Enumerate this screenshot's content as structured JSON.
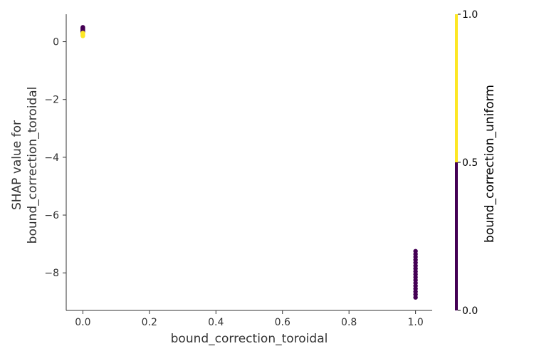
{
  "chart_data": {
    "type": "scatter",
    "xlabel": "bound_correction_toroidal",
    "ylabel_lines": [
      "SHAP value for",
      "bound_correction_toroidal"
    ],
    "xlim": [
      -0.05,
      1.05
    ],
    "ylim": [
      -9.3,
      0.95
    ],
    "xticks": [
      0.0,
      0.2,
      0.4,
      0.6,
      0.8,
      1.0
    ],
    "xtick_labels": [
      "0.0",
      "0.2",
      "0.4",
      "0.6",
      "0.8",
      "1.0"
    ],
    "yticks": [
      0,
      -2,
      -4,
      -6,
      -8
    ],
    "ytick_labels": [
      "0",
      "−2",
      "−4",
      "−6",
      "−8"
    ],
    "grid": false,
    "colorbar": {
      "title": "bound_correction_uniform",
      "ticks": [
        0.0,
        0.5,
        1.0
      ],
      "tick_labels": [
        "0.0",
        "0.5",
        "1.0"
      ],
      "colors": {
        "low": "#440154",
        "high": "#fde725"
      }
    },
    "points": [
      {
        "x": 0.0,
        "y": 0.5,
        "c": 0
      },
      {
        "x": 0.0,
        "y": 0.48,
        "c": 0
      },
      {
        "x": 0.0,
        "y": 0.46,
        "c": 0
      },
      {
        "x": 0.0,
        "y": 0.44,
        "c": 0
      },
      {
        "x": 0.0,
        "y": 0.42,
        "c": 0
      },
      {
        "x": 0.0,
        "y": 0.4,
        "c": 0
      },
      {
        "x": 0.0,
        "y": 0.38,
        "c": 0
      },
      {
        "x": 0.0,
        "y": 0.36,
        "c": 0
      },
      {
        "x": 0.0,
        "y": 0.34,
        "c": 0
      },
      {
        "x": 0.0,
        "y": 0.32,
        "c": 0
      },
      {
        "x": 0.0,
        "y": 0.3,
        "c": 1
      },
      {
        "x": 0.0,
        "y": 0.28,
        "c": 1
      },
      {
        "x": 0.0,
        "y": 0.26,
        "c": 1
      },
      {
        "x": 0.0,
        "y": 0.22,
        "c": 1
      },
      {
        "x": 0.0,
        "y": 0.2,
        "c": 1
      },
      {
        "x": 1.0,
        "y": -7.25,
        "c": 0
      },
      {
        "x": 1.0,
        "y": -7.35,
        "c": 0
      },
      {
        "x": 1.0,
        "y": -7.45,
        "c": 0
      },
      {
        "x": 1.0,
        "y": -7.55,
        "c": 0
      },
      {
        "x": 1.0,
        "y": -7.65,
        "c": 0
      },
      {
        "x": 1.0,
        "y": -7.75,
        "c": 0
      },
      {
        "x": 1.0,
        "y": -7.85,
        "c": 0
      },
      {
        "x": 1.0,
        "y": -7.95,
        "c": 0
      },
      {
        "x": 1.0,
        "y": -8.05,
        "c": 0
      },
      {
        "x": 1.0,
        "y": -8.15,
        "c": 0
      },
      {
        "x": 1.0,
        "y": -8.25,
        "c": 0
      },
      {
        "x": 1.0,
        "y": -8.35,
        "c": 0
      },
      {
        "x": 1.0,
        "y": -8.45,
        "c": 0
      },
      {
        "x": 1.0,
        "y": -8.55,
        "c": 0
      },
      {
        "x": 1.0,
        "y": -8.65,
        "c": 0
      },
      {
        "x": 1.0,
        "y": -8.75,
        "c": 0
      },
      {
        "x": 1.0,
        "y": -8.85,
        "c": 0
      }
    ]
  }
}
